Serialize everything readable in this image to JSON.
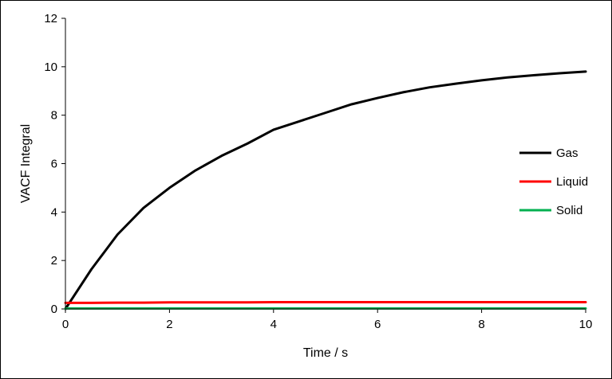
{
  "chart_data": {
    "type": "line",
    "title": "",
    "xlabel": "Time / s",
    "ylabel": "VACF Integral",
    "xlim": [
      0,
      10
    ],
    "ylim": [
      0,
      12
    ],
    "x_ticks": [
      0,
      2,
      4,
      6,
      8,
      10
    ],
    "y_ticks": [
      0,
      2,
      4,
      6,
      8,
      10,
      12
    ],
    "grid": false,
    "legend_position": "right",
    "x": [
      0,
      0.5,
      1,
      1.5,
      2,
      2.5,
      3,
      3.5,
      4,
      4.5,
      5,
      5.5,
      6,
      6.5,
      7,
      7.5,
      8,
      8.5,
      9,
      9.5,
      10
    ],
    "series": [
      {
        "name": "Gas",
        "color": "#000000",
        "values": [
          0,
          1.64,
          3.07,
          4.17,
          5.0,
          5.72,
          6.32,
          6.83,
          7.4,
          7.75,
          8.1,
          8.45,
          8.71,
          8.95,
          9.15,
          9.3,
          9.44,
          9.56,
          9.65,
          9.73,
          9.8
        ]
      },
      {
        "name": "Liquid",
        "color": "#ff0000",
        "values": [
          0.25,
          0.25,
          0.26,
          0.26,
          0.27,
          0.27,
          0.27,
          0.27,
          0.28,
          0.28,
          0.28,
          0.28,
          0.28,
          0.28,
          0.28,
          0.28,
          0.28,
          0.28,
          0.28,
          0.28,
          0.28
        ]
      },
      {
        "name": "Solid",
        "color": "#00b050",
        "values": [
          0.02,
          0.02,
          0.02,
          0.02,
          0.02,
          0.02,
          0.02,
          0.02,
          0.02,
          0.02,
          0.02,
          0.02,
          0.02,
          0.02,
          0.02,
          0.02,
          0.02,
          0.02,
          0.02,
          0.02,
          0.02
        ]
      }
    ]
  }
}
